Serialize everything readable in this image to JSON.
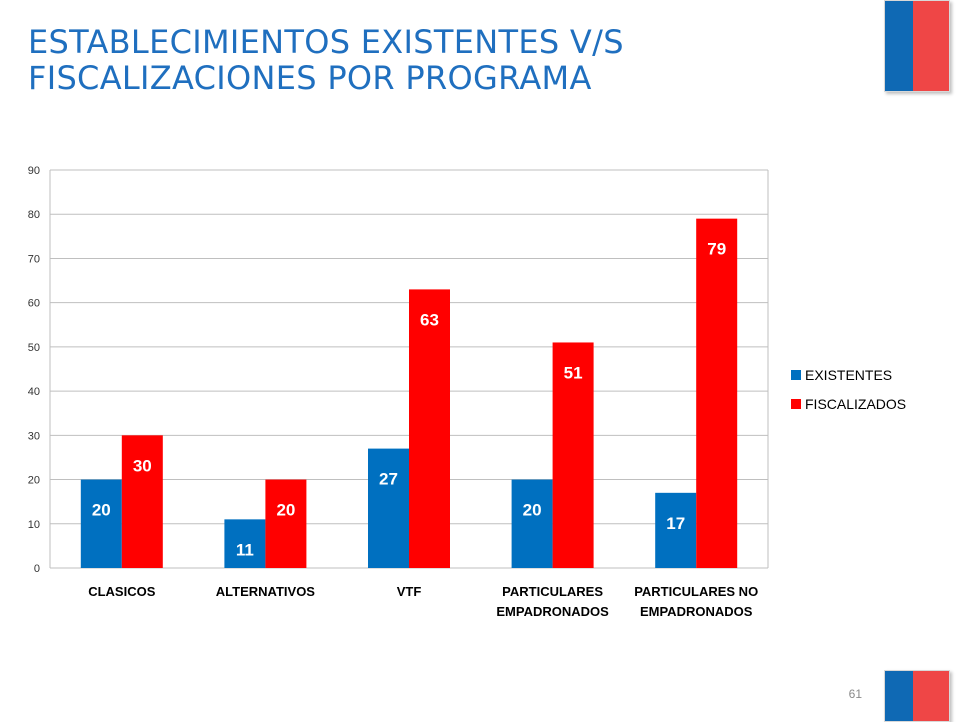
{
  "slide": {
    "title_line1": "ESTABLECIMIENTOS EXISTENTES V/S",
    "title_line2": "FISCALIZACIONES POR PROGRAMA",
    "page_number": "61"
  },
  "colors": {
    "title": "#1f6fbf",
    "flag_blue": "#0f69b4",
    "flag_red": "#ef4646"
  },
  "chart_data": {
    "type": "bar",
    "categories": [
      [
        "CLASICOS"
      ],
      [
        "ALTERNATIVOS"
      ],
      [
        "VTF"
      ],
      [
        "PARTICULARES",
        "EMPADRONADOS"
      ],
      [
        "PARTICULARES NO",
        "EMPADRONADOS"
      ]
    ],
    "series": [
      {
        "name": "EXISTENTES",
        "color": "#0070c0",
        "values": [
          20,
          11,
          27,
          20,
          17
        ]
      },
      {
        "name": "FISCALIZADOS",
        "color": "#ff0000",
        "values": [
          30,
          20,
          63,
          51,
          79
        ]
      }
    ],
    "ylim": [
      0,
      90
    ],
    "yticks": [
      0,
      10,
      20,
      30,
      40,
      50,
      60,
      70,
      80,
      90
    ],
    "grid": true,
    "legend": "right",
    "data_labels": true
  }
}
